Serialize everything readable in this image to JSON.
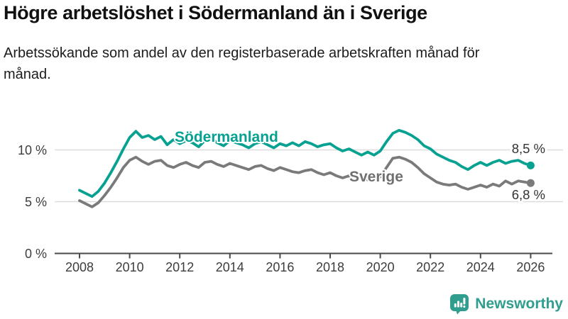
{
  "header": {
    "title": "Högre arbetslöshet i Södermanland än i Sverige",
    "subtitle": "Arbetssökande som andel av den registerbaserade arbetskraften månad för månad."
  },
  "chart_data": {
    "type": "line",
    "title": "Högre arbetslöshet i Södermanland än i Sverige",
    "subtitle": "Arbetssökande som andel av den registerbaserade arbetskraften månad för månad.",
    "xlabel": "",
    "ylabel": "",
    "unit": "%",
    "grid": "horizontal",
    "legend_position": "inline-labels",
    "xlim": [
      2007.5,
      2027
    ],
    "ylim": [
      0,
      13
    ],
    "y_ticks": [
      0,
      5,
      10
    ],
    "y_tick_labels": [
      "0 %",
      "5 %",
      "10 %"
    ],
    "x_ticks": [
      2008,
      2010,
      2012,
      2014,
      2016,
      2018,
      2020,
      2022,
      2024,
      2026
    ],
    "x_tick_labels": [
      "2008",
      "2010",
      "2012",
      "2014",
      "2016",
      "2018",
      "2020",
      "2022",
      "2024",
      "2026"
    ],
    "x_start": 2008,
    "x_step_years": 0.25,
    "x_end": 2026,
    "series": [
      {
        "name": "Södermanland",
        "color": "#06a191",
        "end_label": "8,5 %",
        "values": [
          6.1,
          5.8,
          5.5,
          6.0,
          6.8,
          7.8,
          8.9,
          10.1,
          11.2,
          11.8,
          11.2,
          11.4,
          11.0,
          11.3,
          10.5,
          11.0,
          10.6,
          10.9,
          10.7,
          10.3,
          10.9,
          11.1,
          10.7,
          10.4,
          10.9,
          10.7,
          10.5,
          10.2,
          10.6,
          10.8,
          10.5,
          10.2,
          10.6,
          10.4,
          10.7,
          10.4,
          10.8,
          10.6,
          10.3,
          10.5,
          10.6,
          10.2,
          9.9,
          10.1,
          9.8,
          9.5,
          9.8,
          9.5,
          9.9,
          10.8,
          11.6,
          11.9,
          11.7,
          11.4,
          11.0,
          10.4,
          10.1,
          9.6,
          9.3,
          9.0,
          8.8,
          8.4,
          8.1,
          8.5,
          8.8,
          8.5,
          8.8,
          9.0,
          8.7,
          8.9,
          9.0,
          8.7,
          8.5
        ]
      },
      {
        "name": "Sverige",
        "color": "#7a7a7a",
        "end_label": "6,8 %",
        "values": [
          5.1,
          4.8,
          4.5,
          4.9,
          5.6,
          6.4,
          7.3,
          8.3,
          9.0,
          9.3,
          8.9,
          8.6,
          8.9,
          9.0,
          8.5,
          8.3,
          8.6,
          8.8,
          8.5,
          8.3,
          8.8,
          8.9,
          8.6,
          8.4,
          8.7,
          8.5,
          8.3,
          8.1,
          8.4,
          8.5,
          8.2,
          8.0,
          8.3,
          8.1,
          7.9,
          7.8,
          8.0,
          8.1,
          7.8,
          7.6,
          7.8,
          7.5,
          7.3,
          7.5,
          7.2,
          7.4,
          7.1,
          7.0,
          7.4,
          8.3,
          9.2,
          9.3,
          9.1,
          8.8,
          8.3,
          7.7,
          7.3,
          6.9,
          6.7,
          6.6,
          6.7,
          6.4,
          6.2,
          6.4,
          6.6,
          6.4,
          6.7,
          6.5,
          7.0,
          6.7,
          7.0,
          6.9,
          6.8
        ]
      }
    ]
  },
  "colors": {
    "sodermanland_line": "#06a191",
    "sverige_line": "#7a7a7a",
    "grid_line": "#dcdcdc",
    "axis_line": "#4a4a4a",
    "axis_text": "#3d3d3d",
    "title_text": "#111111",
    "brand_teal": "#2f9e8e"
  },
  "footer": {
    "brand_name": "Newsworthy"
  }
}
